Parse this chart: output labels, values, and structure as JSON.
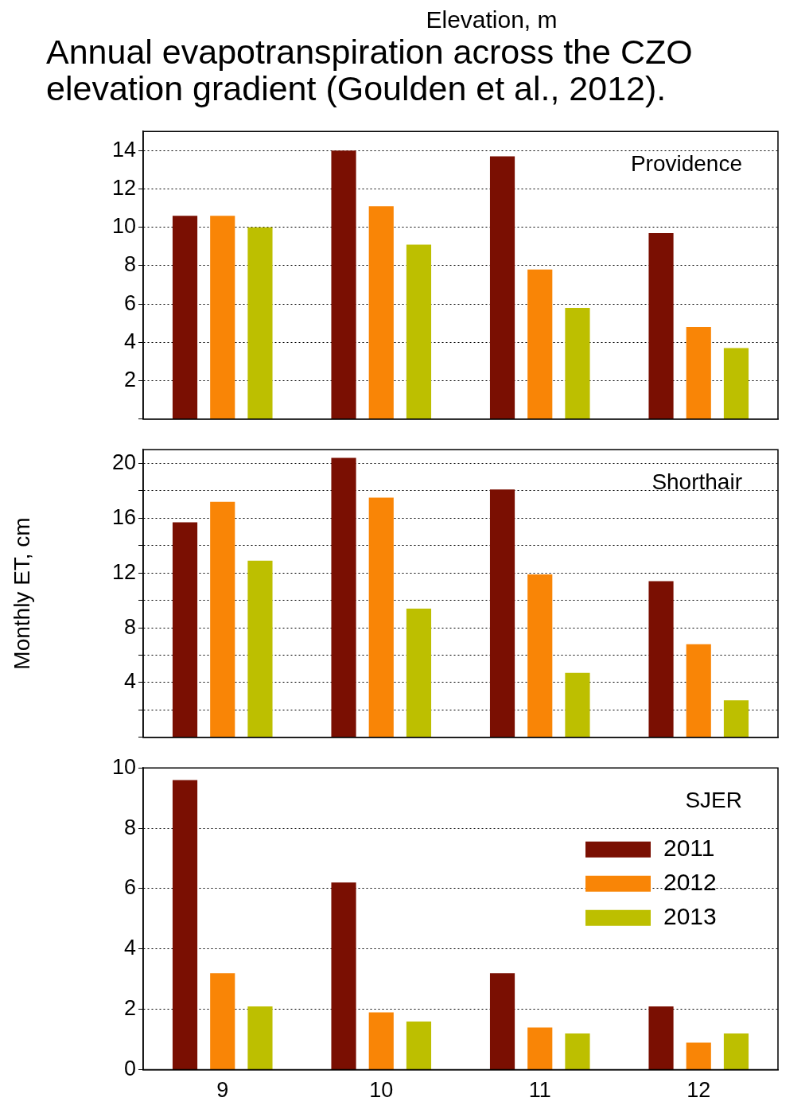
{
  "chart_data": [
    {
      "type": "bar",
      "title": "Annual evapotranspiration across the CZO elevation gradient (Goulden et al., 2012).",
      "xlabel": "Elevation, m",
      "annotations": [
        "Providence"
      ],
      "categories": [
        "9",
        "10",
        "11",
        "12"
      ],
      "series": [
        {
          "color": "#7a0f02",
          "values": [
            10.6,
            14.0,
            13.7,
            9.7
          ]
        },
        {
          "color": "#f98506",
          "values": [
            10.6,
            11.1,
            7.8,
            4.8
          ]
        },
        {
          "color": "#bdbf00",
          "values": [
            10.0,
            9.1,
            5.8,
            3.7
          ]
        }
      ],
      "ylim": [
        0,
        15
      ],
      "yticks": [
        {
          "value": 0,
          "label": null
        },
        2,
        4,
        6,
        8,
        10,
        12,
        14
      ],
      "grid": "y",
      "tick_labels": "y"
    },
    {
      "type": "bar",
      "ylabel": "Monthly ET, cm",
      "annotations": [
        "Shorthair"
      ],
      "categories": [
        "9",
        "10",
        "11",
        "12"
      ],
      "series": [
        {
          "color": "#7a0f02",
          "values": [
            15.7,
            20.4,
            18.1,
            11.4
          ]
        },
        {
          "color": "#f98506",
          "values": [
            17.2,
            17.5,
            11.9,
            6.8
          ]
        },
        {
          "color": "#bdbf00",
          "values": [
            12.9,
            9.4,
            4.7,
            2.7
          ]
        }
      ],
      "ylim": [
        0,
        21
      ],
      "yticks": [
        {
          "value": 0,
          "label": null
        },
        {
          "value": 2,
          "label": null
        },
        4,
        {
          "value": 6,
          "label": null
        },
        8,
        {
          "value": 10,
          "label": null
        },
        12,
        {
          "value": 14,
          "label": null
        },
        16,
        {
          "value": 18,
          "label": null
        },
        20
      ],
      "grid": "y",
      "tick_labels": "y"
    },
    {
      "type": "bar",
      "annotations": [
        "SJER"
      ],
      "categories": [
        "9",
        "10",
        "11",
        "12"
      ],
      "series": [
        {
          "name": "2011",
          "color": "#7a0f02",
          "values": [
            9.6,
            6.2,
            3.2,
            2.1
          ]
        },
        {
          "name": "2012",
          "color": "#f98506",
          "values": [
            3.2,
            1.9,
            1.4,
            0.9
          ]
        },
        {
          "name": "2013",
          "color": "#bdbf00",
          "values": [
            2.1,
            1.6,
            1.2,
            1.2
          ]
        }
      ],
      "ylim": [
        0,
        10
      ],
      "yticks": [
        0,
        2,
        4,
        6,
        8,
        10
      ],
      "grid": "y",
      "legend": "right"
    }
  ]
}
